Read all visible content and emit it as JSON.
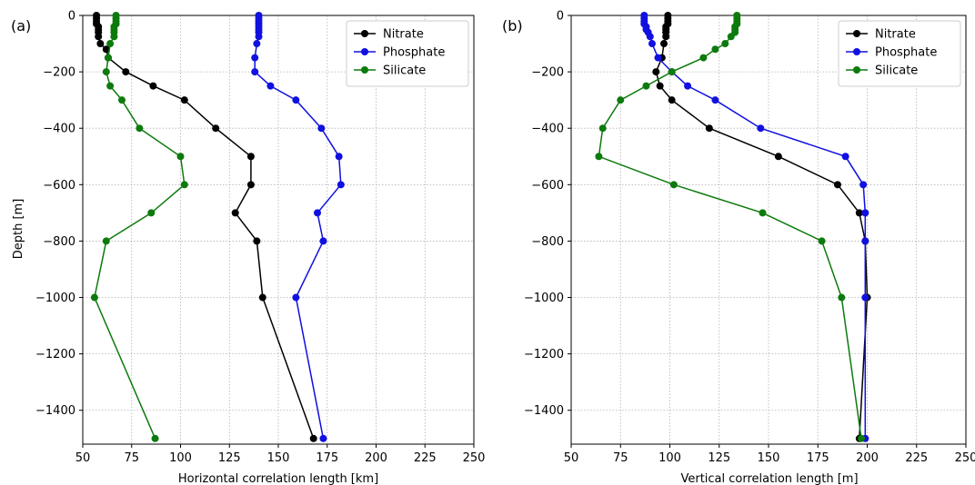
{
  "figure": {
    "panels": [
      {
        "panel_label": "(a)",
        "xlabel": "Horizontal correlation length [km]",
        "ylabel": "Depth [m]"
      },
      {
        "panel_label": "(b)",
        "xlabel": "Vertical correlation length [m]",
        "ylabel": ""
      }
    ]
  },
  "chart_data": [
    {
      "type": "line",
      "panel_label": "(a)",
      "title": "",
      "xlabel": "Horizontal correlation length [km]",
      "ylabel": "Depth [m]",
      "xlim": [
        50,
        250
      ],
      "ylim": [
        -1520,
        0
      ],
      "xticks": [
        50,
        75,
        100,
        125,
        150,
        175,
        200,
        225,
        250
      ],
      "yticks": [
        0,
        -200,
        -400,
        -600,
        -800,
        -1000,
        -1200,
        -1400
      ],
      "ytick_labels": [
        "0",
        "−200",
        "−400",
        "−600",
        "−800",
        "−1000",
        "−1200",
        "−1400"
      ],
      "grid": true,
      "grid_style": "dotted",
      "legend_position": "top-right",
      "series": [
        {
          "name": "Nitrate",
          "color": "#000000",
          "points": [
            [
              57,
              0
            ],
            [
              57,
              -10
            ],
            [
              57,
              -20
            ],
            [
              57,
              -30
            ],
            [
              58,
              -40
            ],
            [
              58,
              -50
            ],
            [
              58,
              -60
            ],
            [
              58,
              -75
            ],
            [
              59,
              -100
            ],
            [
              62,
              -120
            ],
            [
              63,
              -150
            ],
            [
              72,
              -200
            ],
            [
              86,
              -250
            ],
            [
              102,
              -300
            ],
            [
              118,
              -400
            ],
            [
              136,
              -500
            ],
            [
              136,
              -600
            ],
            [
              128,
              -700
            ],
            [
              139,
              -800
            ],
            [
              142,
              -1000
            ],
            [
              168,
              -1500
            ]
          ]
        },
        {
          "name": "Phosphate",
          "color": "#1010e0",
          "points": [
            [
              140,
              0
            ],
            [
              140,
              -10
            ],
            [
              140,
              -20
            ],
            [
              140,
              -30
            ],
            [
              140,
              -40
            ],
            [
              140,
              -50
            ],
            [
              140,
              -60
            ],
            [
              140,
              -75
            ],
            [
              139,
              -100
            ],
            [
              138,
              -150
            ],
            [
              138,
              -200
            ],
            [
              146,
              -250
            ],
            [
              159,
              -300
            ],
            [
              172,
              -400
            ],
            [
              181,
              -500
            ],
            [
              182,
              -600
            ],
            [
              170,
              -700
            ],
            [
              173,
              -800
            ],
            [
              159,
              -1000
            ],
            [
              173,
              -1500
            ]
          ]
        },
        {
          "name": "Silicate",
          "color": "#0c7a0c",
          "points": [
            [
              67,
              0
            ],
            [
              67,
              -10
            ],
            [
              67,
              -20
            ],
            [
              67,
              -30
            ],
            [
              66,
              -40
            ],
            [
              66,
              -50
            ],
            [
              66,
              -60
            ],
            [
              66,
              -75
            ],
            [
              64,
              -100
            ],
            [
              63,
              -150
            ],
            [
              62,
              -200
            ],
            [
              64,
              -250
            ],
            [
              70,
              -300
            ],
            [
              79,
              -400
            ],
            [
              100,
              -500
            ],
            [
              102,
              -600
            ],
            [
              85,
              -700
            ],
            [
              62,
              -800
            ],
            [
              56,
              -1000
            ],
            [
              87,
              -1500
            ]
          ]
        }
      ]
    },
    {
      "type": "line",
      "panel_label": "(b)",
      "title": "",
      "xlabel": "Vertical correlation length [m]",
      "ylabel": "",
      "xlim": [
        50,
        250
      ],
      "ylim": [
        -1520,
        0
      ],
      "xticks": [
        50,
        75,
        100,
        125,
        150,
        175,
        200,
        225,
        250
      ],
      "yticks": [
        0,
        -200,
        -400,
        -600,
        -800,
        -1000,
        -1200,
        -1400
      ],
      "ytick_labels": [
        "0",
        "−200",
        "−400",
        "−600",
        "−800",
        "−1000",
        "−1200",
        "−1400"
      ],
      "grid": true,
      "grid_style": "dotted",
      "legend_position": "top-right",
      "series": [
        {
          "name": "Nitrate",
          "color": "#000000",
          "points": [
            [
              99,
              0
            ],
            [
              99,
              -10
            ],
            [
              99,
              -20
            ],
            [
              99,
              -30
            ],
            [
              98,
              -40
            ],
            [
              98,
              -50
            ],
            [
              98,
              -60
            ],
            [
              98,
              -75
            ],
            [
              97,
              -100
            ],
            [
              96,
              -150
            ],
            [
              93,
              -200
            ],
            [
              95,
              -250
            ],
            [
              101,
              -300
            ],
            [
              120,
              -400
            ],
            [
              155,
              -500
            ],
            [
              185,
              -600
            ],
            [
              196,
              -700
            ],
            [
              199,
              -800
            ],
            [
              200,
              -1000
            ],
            [
              196,
              -1500
            ]
          ]
        },
        {
          "name": "Phosphate",
          "color": "#1010e0",
          "points": [
            [
              87,
              0
            ],
            [
              87,
              -10
            ],
            [
              87,
              -20
            ],
            [
              87,
              -30
            ],
            [
              88,
              -40
            ],
            [
              88,
              -50
            ],
            [
              89,
              -60
            ],
            [
              90,
              -75
            ],
            [
              91,
              -100
            ],
            [
              94,
              -150
            ],
            [
              101,
              -200
            ],
            [
              109,
              -250
            ],
            [
              123,
              -300
            ],
            [
              146,
              -400
            ],
            [
              189,
              -500
            ],
            [
              198,
              -600
            ],
            [
              199,
              -700
            ],
            [
              199,
              -800
            ],
            [
              199,
              -1000
            ],
            [
              199,
              -1500
            ]
          ]
        },
        {
          "name": "Silicate",
          "color": "#0c7a0c",
          "points": [
            [
              134,
              0
            ],
            [
              134,
              -10
            ],
            [
              134,
              -20
            ],
            [
              134,
              -30
            ],
            [
              133,
              -40
            ],
            [
              133,
              -50
            ],
            [
              133,
              -60
            ],
            [
              131,
              -75
            ],
            [
              128,
              -100
            ],
            [
              123,
              -120
            ],
            [
              117,
              -150
            ],
            [
              101,
              -200
            ],
            [
              88,
              -250
            ],
            [
              75,
              -300
            ],
            [
              66,
              -400
            ],
            [
              64,
              -500
            ],
            [
              102,
              -600
            ],
            [
              147,
              -700
            ],
            [
              177,
              -800
            ],
            [
              187,
              -1000
            ],
            [
              197,
              -1500
            ]
          ]
        }
      ]
    }
  ]
}
